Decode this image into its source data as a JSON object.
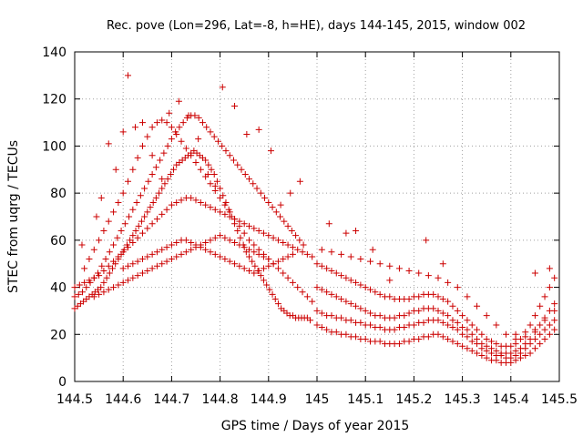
{
  "chart_data": {
    "type": "scatter",
    "title": "Rec. pove (Lon=296, Lat=-8, h=HE), days 144-145, 2015, window 002",
    "xlabel": "GPS time / Days of year 2015",
    "ylabel": "STEC from uqrg / TECUs",
    "xlim": [
      144.5,
      145.5
    ],
    "ylim": [
      0,
      140
    ],
    "xticks": [
      "144.5",
      "144.6",
      "144.7",
      "144.8",
      "144.9",
      "145",
      "145.1",
      "145.2",
      "145.3",
      "145.4",
      "145.5"
    ],
    "yticks": [
      "0",
      "20",
      "40",
      "60",
      "80",
      "100",
      "120",
      "140"
    ],
    "grid": true,
    "marker": "plus",
    "color": "#cc0000",
    "series": [
      {
        "x": [
          144.5,
          144.506,
          144.512,
          144.518,
          144.524,
          144.53,
          144.536,
          144.542,
          144.548,
          144.554,
          144.56,
          144.566,
          144.572,
          144.578,
          144.584,
          144.59,
          144.596,
          144.602,
          144.608,
          144.614,
          144.62,
          144.626,
          144.632,
          144.638,
          144.644,
          144.65,
          144.656,
          144.662,
          144.668,
          144.674,
          144.68,
          144.686,
          144.692,
          144.698,
          144.704,
          144.71,
          144.716,
          144.722,
          144.728,
          144.734,
          144.74,
          144.746,
          144.752,
          144.758,
          144.764,
          144.77,
          144.776,
          144.782,
          144.788,
          144.794,
          144.8,
          144.806,
          144.812,
          144.818,
          144.824,
          144.83,
          144.836,
          144.842,
          144.848,
          144.854,
          144.86,
          144.866,
          144.872,
          144.878,
          144.884,
          144.89,
          144.896,
          144.902,
          144.908,
          144.914,
          144.92,
          144.926,
          144.932,
          144.938,
          144.944,
          144.95,
          144.956,
          144.962,
          144.968,
          144.974,
          144.98,
          144.986
        ],
        "y": [
          31,
          32,
          33,
          34,
          35,
          36,
          37,
          38,
          39,
          40,
          42,
          44,
          46,
          48,
          50,
          52,
          54,
          56,
          58,
          60,
          62,
          64,
          66,
          68,
          70,
          72,
          74,
          76,
          78,
          80,
          82,
          84,
          86,
          88,
          90,
          92,
          93,
          94,
          95,
          96,
          97,
          98,
          97,
          96,
          95,
          94,
          92,
          90,
          88,
          85,
          82,
          79,
          76,
          73,
          70,
          67,
          64,
          61,
          58,
          55,
          53,
          51,
          49,
          47,
          45,
          43,
          41,
          39,
          37,
          35,
          33,
          31,
          30,
          29,
          28,
          28,
          27,
          27,
          27,
          27,
          27,
          26
        ]
      },
      {
        "x": [
          144.5,
          144.508,
          144.516,
          144.524,
          144.532,
          144.54,
          144.548,
          144.556,
          144.564,
          144.572,
          144.58,
          144.588,
          144.596,
          144.604,
          144.612,
          144.62,
          144.628,
          144.636,
          144.644,
          144.652,
          144.66,
          144.668,
          144.676,
          144.684,
          144.692,
          144.7,
          144.708,
          144.716,
          144.724,
          144.732,
          144.74,
          144.748,
          144.756,
          144.764,
          144.772,
          144.78,
          144.788,
          144.796,
          144.804,
          144.812,
          144.82,
          144.828,
          144.836,
          144.844,
          144.852,
          144.86,
          144.868,
          144.876,
          144.884,
          144.892,
          144.9,
          144.908,
          144.916,
          144.924,
          144.932,
          144.94,
          144.948,
          144.956,
          144.964,
          144.972
        ],
        "y": [
          36,
          37,
          38,
          40,
          42,
          44,
          46,
          49,
          52,
          55,
          58,
          61,
          64,
          67,
          70,
          73,
          76,
          79,
          82,
          85,
          88,
          91,
          94,
          97,
          100,
          103,
          106,
          108,
          110,
          112,
          113,
          113,
          112,
          110,
          108,
          106,
          104,
          102,
          100,
          98,
          96,
          94,
          92,
          90,
          88,
          86,
          84,
          82,
          80,
          78,
          76,
          74,
          72,
          70,
          68,
          66,
          64,
          62,
          60,
          58
        ]
      },
      {
        "x": [
          144.52,
          144.53,
          144.54,
          144.55,
          144.56,
          144.57,
          144.58,
          144.59,
          144.6,
          144.61,
          144.62,
          144.63,
          144.64,
          144.65,
          144.66,
          144.67,
          144.68,
          144.69,
          144.7,
          144.71,
          144.72,
          144.73,
          144.74,
          144.75,
          144.76,
          144.77,
          144.78,
          144.79,
          144.8,
          144.81,
          144.82,
          144.83,
          144.84,
          144.85,
          144.86,
          144.87,
          144.88,
          144.89,
          144.9,
          144.91,
          144.92,
          144.93,
          144.94,
          144.95,
          144.96,
          144.97,
          144.98,
          144.99
        ],
        "y": [
          48,
          52,
          56,
          60,
          64,
          68,
          72,
          76,
          80,
          85,
          90,
          95,
          100,
          104,
          108,
          110,
          111,
          110,
          108,
          105,
          102,
          99,
          96,
          93,
          90,
          87,
          84,
          81,
          78,
          75,
          72,
          69,
          66,
          63,
          60,
          58,
          56,
          54,
          52,
          50,
          48,
          46,
          44,
          42,
          40,
          38,
          36,
          34
        ]
      },
      {
        "x": [
          144.5,
          144.51,
          144.52,
          144.53,
          144.54,
          144.55,
          144.56,
          144.57,
          144.58,
          144.59,
          144.6,
          144.61,
          144.62,
          144.63,
          144.64,
          144.65,
          144.66,
          144.67,
          144.68,
          144.69,
          144.7,
          144.71,
          144.72,
          144.73,
          144.74,
          144.75,
          144.76,
          144.77,
          144.78,
          144.79,
          144.8,
          144.81,
          144.82,
          144.83,
          144.84,
          144.85,
          144.86,
          144.87,
          144.88,
          144.89,
          144.9,
          144.91,
          144.92,
          144.93,
          144.94,
          144.95,
          144.96,
          144.97,
          144.98,
          144.99
        ],
        "y": [
          40,
          41,
          42,
          43,
          44,
          45,
          47,
          49,
          51,
          53,
          55,
          57,
          59,
          61,
          63,
          65,
          67,
          69,
          71,
          73,
          75,
          76,
          77,
          78,
          78,
          77,
          76,
          75,
          74,
          73,
          72,
          71,
          70,
          69,
          68,
          67,
          66,
          65,
          64,
          63,
          62,
          61,
          60,
          59,
          58,
          57,
          56,
          55,
          54,
          53
        ]
      },
      {
        "x": [
          144.54,
          144.55,
          144.56,
          144.57,
          144.58,
          144.59,
          144.6,
          144.61,
          144.62,
          144.63,
          144.64,
          144.65,
          144.66,
          144.67,
          144.68,
          144.69,
          144.7,
          144.71,
          144.72,
          144.73,
          144.74,
          144.75,
          144.76,
          144.77,
          144.78,
          144.79,
          144.8,
          144.81,
          144.82,
          144.83,
          144.84,
          144.85,
          144.86,
          144.87,
          144.88,
          144.89,
          144.9
        ],
        "y": [
          36,
          37,
          38,
          39,
          40,
          41,
          42,
          43,
          44,
          45,
          46,
          47,
          48,
          49,
          50,
          51,
          52,
          53,
          54,
          55,
          56,
          57,
          58,
          59,
          60,
          61,
          62,
          61,
          60,
          59,
          58,
          57,
          56,
          55,
          54,
          53,
          52
        ]
      },
      {
        "x": [
          144.6,
          144.61,
          144.62,
          144.63,
          144.64,
          144.65,
          144.66,
          144.67,
          144.68,
          144.69,
          144.7,
          144.71,
          144.72,
          144.73,
          144.74,
          144.75,
          144.76,
          144.77,
          144.78,
          144.79,
          144.8,
          144.81,
          144.82,
          144.83,
          144.84,
          144.85,
          144.86,
          144.87,
          144.88,
          144.89,
          144.9,
          144.91,
          144.92,
          144.93,
          144.94,
          144.95
        ],
        "y": [
          48,
          49,
          50,
          51,
          52,
          53,
          54,
          55,
          56,
          57,
          58,
          59,
          60,
          60,
          59,
          58,
          57,
          56,
          55,
          54,
          53,
          52,
          51,
          50,
          49,
          48,
          47,
          46,
          47,
          48,
          49,
          50,
          51,
          52,
          53,
          54
        ]
      },
      {
        "x": [
          145.0,
          145.01,
          145.02,
          145.03,
          145.04,
          145.05,
          145.06,
          145.07,
          145.08,
          145.09,
          145.1,
          145.11,
          145.12,
          145.13,
          145.14,
          145.15,
          145.16,
          145.17,
          145.18,
          145.19,
          145.2,
          145.21,
          145.22,
          145.23,
          145.24,
          145.25,
          145.26,
          145.27,
          145.28,
          145.29,
          145.3,
          145.31,
          145.32,
          145.33,
          145.34,
          145.35,
          145.36,
          145.37,
          145.38,
          145.39,
          145.4,
          145.41,
          145.42,
          145.43,
          145.44,
          145.45,
          145.46,
          145.47,
          145.48,
          145.49
        ],
        "y": [
          24,
          23,
          22,
          21,
          21,
          20,
          20,
          19,
          19,
          18,
          18,
          17,
          17,
          17,
          16,
          16,
          16,
          16,
          17,
          17,
          18,
          18,
          19,
          19,
          20,
          20,
          19,
          18,
          17,
          16,
          15,
          14,
          13,
          12,
          11,
          10,
          9,
          9,
          8,
          8,
          8,
          9,
          10,
          11,
          12,
          14,
          16,
          18,
          20,
          22
        ]
      },
      {
        "x": [
          145.0,
          145.01,
          145.02,
          145.03,
          145.04,
          145.05,
          145.06,
          145.07,
          145.08,
          145.09,
          145.1,
          145.11,
          145.12,
          145.13,
          145.14,
          145.15,
          145.16,
          145.17,
          145.18,
          145.19,
          145.2,
          145.21,
          145.22,
          145.23,
          145.24,
          145.25,
          145.26,
          145.27,
          145.28,
          145.29,
          145.3,
          145.31,
          145.32,
          145.33,
          145.34,
          145.35,
          145.36,
          145.37,
          145.38,
          145.39,
          145.4,
          145.41,
          145.42,
          145.43,
          145.44,
          145.45,
          145.46,
          145.47,
          145.48,
          145.49
        ],
        "y": [
          30,
          29,
          28,
          28,
          27,
          27,
          26,
          26,
          25,
          25,
          24,
          24,
          23,
          23,
          22,
          22,
          22,
          23,
          23,
          24,
          24,
          25,
          25,
          26,
          26,
          26,
          25,
          24,
          23,
          22,
          20,
          19,
          17,
          16,
          14,
          13,
          12,
          11,
          11,
          10,
          10,
          11,
          12,
          14,
          16,
          18,
          20,
          22,
          24,
          26
        ]
      },
      {
        "x": [
          145.0,
          145.01,
          145.02,
          145.03,
          145.04,
          145.05,
          145.06,
          145.07,
          145.08,
          145.09,
          145.1,
          145.11,
          145.12,
          145.13,
          145.14,
          145.15,
          145.16,
          145.17,
          145.18,
          145.19,
          145.2,
          145.21,
          145.22,
          145.23,
          145.24,
          145.25,
          145.26,
          145.27,
          145.28,
          145.29,
          145.3,
          145.31,
          145.32,
          145.33,
          145.34,
          145.35,
          145.36,
          145.37,
          145.38,
          145.39,
          145.4,
          145.41,
          145.42,
          145.43,
          145.44,
          145.45,
          145.46,
          145.47,
          145.48,
          145.49
        ],
        "y": [
          40,
          39,
          38,
          37,
          36,
          35,
          34,
          33,
          32,
          31,
          30,
          29,
          28,
          28,
          27,
          27,
          27,
          28,
          28,
          29,
          30,
          30,
          31,
          31,
          31,
          30,
          29,
          28,
          26,
          25,
          23,
          22,
          20,
          18,
          16,
          15,
          14,
          13,
          12,
          12,
          12,
          13,
          14,
          16,
          18,
          21,
          24,
          27,
          30,
          33
        ]
      },
      {
        "x": [
          145.0,
          145.01,
          145.02,
          145.03,
          145.04,
          145.05,
          145.06,
          145.07,
          145.08,
          145.09,
          145.1,
          145.11,
          145.12,
          145.13,
          145.14,
          145.15,
          145.16,
          145.17,
          145.18,
          145.19,
          145.2,
          145.21,
          145.22,
          145.23,
          145.24,
          145.25,
          145.26,
          145.27,
          145.28,
          145.29,
          145.3,
          145.31,
          145.32,
          145.33,
          145.34,
          145.35,
          145.36,
          145.37,
          145.38,
          145.39,
          145.4,
          145.41,
          145.42,
          145.43,
          145.44,
          145.45,
          145.46,
          145.47,
          145.48,
          145.49
        ],
        "y": [
          50,
          49,
          48,
          47,
          46,
          45,
          44,
          43,
          42,
          41,
          40,
          39,
          38,
          37,
          36,
          36,
          35,
          35,
          35,
          35,
          36,
          36,
          37,
          37,
          37,
          36,
          35,
          34,
          32,
          30,
          28,
          26,
          24,
          22,
          20,
          18,
          17,
          16,
          15,
          15,
          15,
          16,
          18,
          21,
          24,
          28,
          32,
          36,
          40,
          44
        ]
      },
      {
        "x": [
          145.01,
          145.03,
          145.05,
          145.07,
          145.09,
          145.11,
          145.13,
          145.15,
          145.17,
          145.19,
          145.21,
          145.23,
          145.25,
          145.27,
          145.29,
          145.31,
          145.33,
          145.35,
          145.37,
          145.39,
          145.41,
          145.43,
          145.45,
          145.47,
          145.49
        ],
        "y": [
          56,
          55,
          54,
          53,
          52,
          51,
          50,
          49,
          48,
          47,
          46,
          45,
          44,
          42,
          40,
          36,
          32,
          28,
          24,
          20,
          18,
          19,
          22,
          26,
          30
        ]
      },
      {
        "x": [
          144.515,
          144.545,
          144.555,
          144.57,
          144.585,
          144.6,
          144.61,
          144.625,
          144.64,
          144.66,
          144.68,
          144.695,
          144.715,
          144.735,
          144.755,
          144.775,
          144.79,
          144.805,
          144.83,
          144.855,
          144.88,
          144.905,
          144.925,
          144.945,
          144.965,
          145.025,
          145.06,
          145.08,
          145.115,
          145.15,
          145.225,
          145.26,
          145.41,
          145.45,
          145.48
        ],
        "y": [
          58,
          70,
          78,
          101,
          90,
          106,
          130,
          108,
          110,
          96,
          86,
          114,
          119,
          113,
          103,
          88,
          83,
          125,
          117,
          105,
          107,
          98,
          75,
          80,
          85,
          67,
          63,
          64,
          56,
          43,
          60,
          50,
          20,
          46,
          48
        ]
      }
    ]
  }
}
